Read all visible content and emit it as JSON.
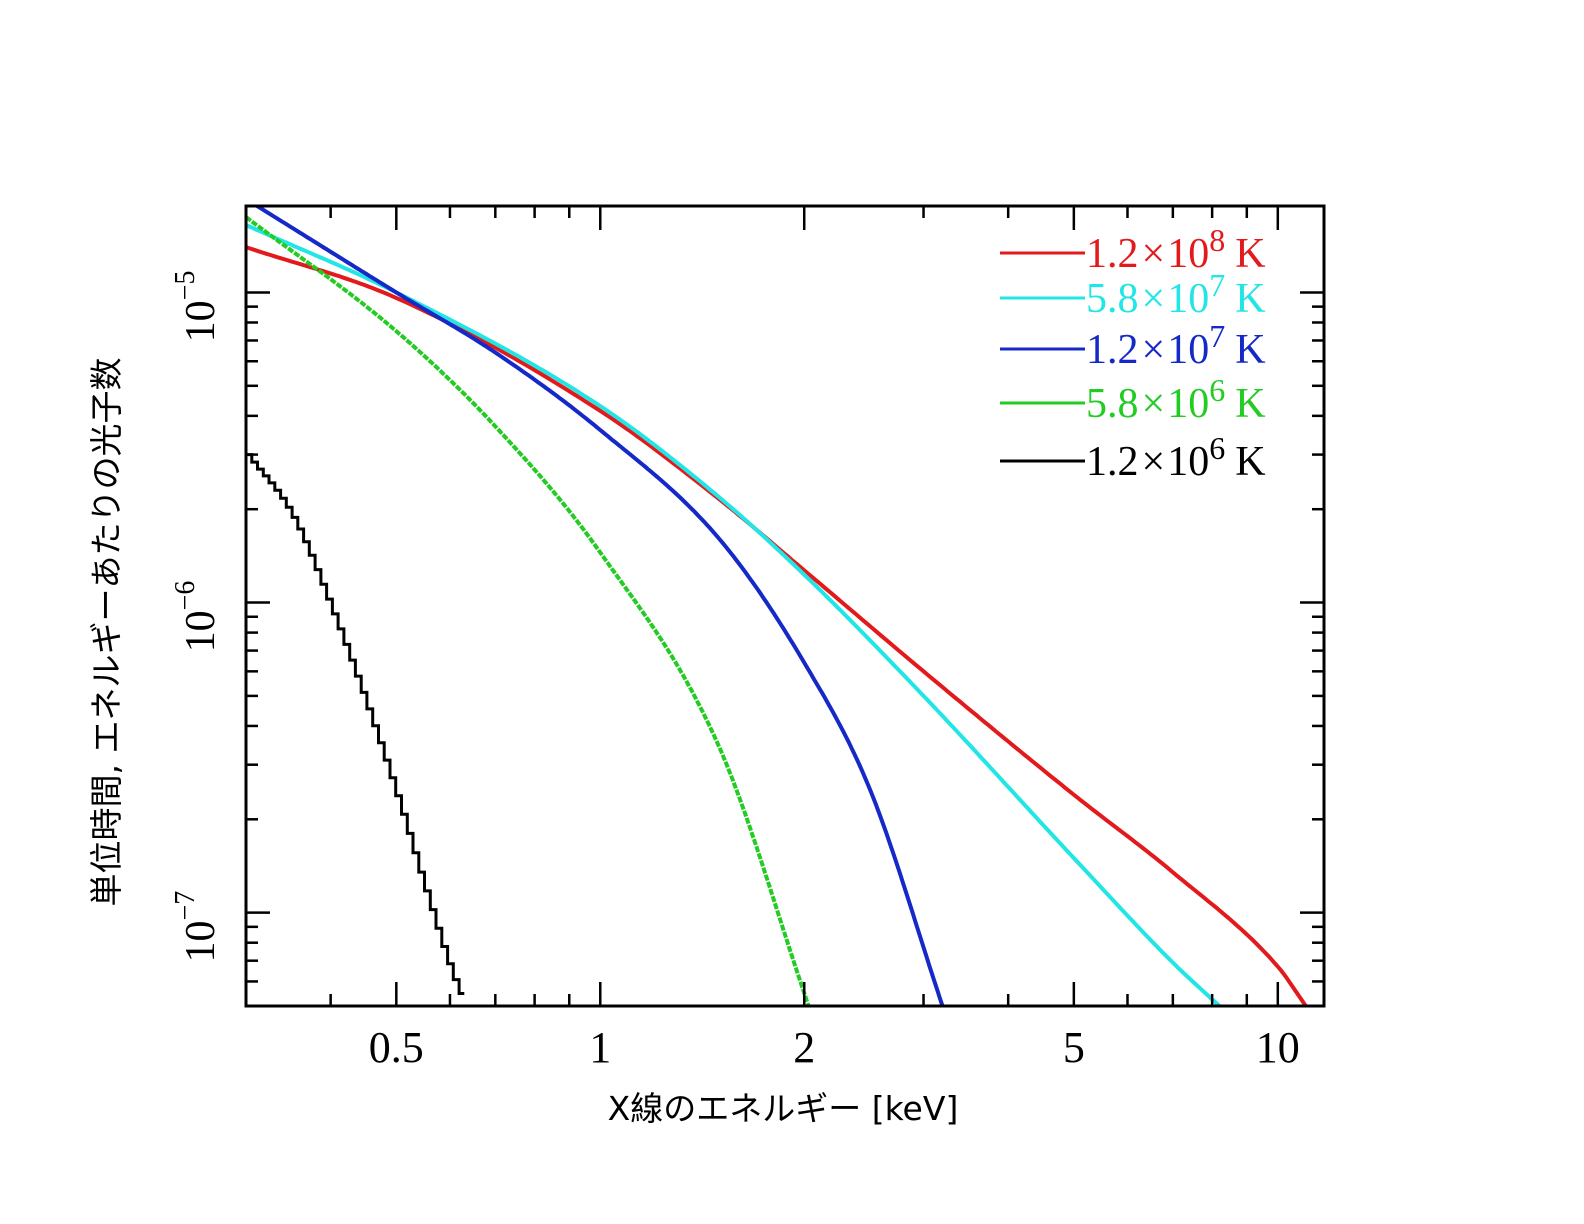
{
  "chart_data": {
    "type": "line",
    "title": "",
    "xlabel": "X線のエネルギー [keV]",
    "ylabel": "単位時間, エネルギーあたりの光子数",
    "xscale": "log",
    "yscale": "log",
    "xlim": [
      0.3,
      11.7
    ],
    "ylim": [
      5e-08,
      1.9e-05
    ],
    "x_ticks": [
      {
        "value": 0.5,
        "label": "0.5"
      },
      {
        "value": 1,
        "label": "1"
      },
      {
        "value": 2,
        "label": "2"
      },
      {
        "value": 5,
        "label": "5"
      },
      {
        "value": 10,
        "label": "10"
      }
    ],
    "y_ticks": [
      {
        "value": 1e-07,
        "base": "10",
        "exp": "−7"
      },
      {
        "value": 1e-06,
        "base": "10",
        "exp": "−6"
      },
      {
        "value": 1e-05,
        "base": "10",
        "exp": "−5"
      }
    ],
    "grid": false,
    "legend_position": "top-right",
    "series": [
      {
        "name": "1.2×10⁸ K",
        "mantissa": "1.2",
        "times": "×",
        "base": "10",
        "exp": "8",
        "unit": "K",
        "color": "#e31a1c",
        "style": "smooth",
        "x": [
          0.3,
          0.5,
          1,
          1.5,
          2,
          3,
          5,
          7,
          10,
          11.0
        ],
        "y": [
          1.4e-05,
          9.6e-06,
          4.15e-06,
          2.15e-06,
          1.27e-06,
          6e-07,
          2.4e-07,
          1.35e-07,
          6.7e-08,
          5e-08
        ]
      },
      {
        "name": "5.8×10⁷ K",
        "mantissa": "5.8",
        "times": "×",
        "base": "10",
        "exp": "7",
        "unit": "K",
        "color": "#22e5e5",
        "style": "smooth",
        "x": [
          0.3,
          0.5,
          1,
          1.5,
          2,
          3,
          5,
          7,
          8.2
        ],
        "y": [
          1.65e-05,
          1e-05,
          4.3e-06,
          2.18e-06,
          1.23e-06,
          5e-07,
          1.5e-07,
          6.9e-08,
          5e-08
        ]
      },
      {
        "name": "1.2×10⁷ K",
        "mantissa": "1.2",
        "times": "×",
        "base": "10",
        "exp": "7",
        "unit": "K",
        "color": "#1528c8",
        "style": "smooth",
        "x": [
          0.3,
          0.5,
          0.7,
          1,
          1.5,
          2,
          2.5,
          3.2
        ],
        "y": [
          2e-05,
          1e-05,
          6.4e-06,
          3.6e-06,
          1.6e-06,
          6.4e-07,
          2.5e-07,
          5e-08
        ]
      },
      {
        "name": "5.8×10⁶ K",
        "mantissa": "5.8",
        "times": "×",
        "base": "10",
        "exp": "6",
        "unit": "K",
        "color": "#22cc22",
        "style": "smooth",
        "x": [
          0.3,
          0.5,
          0.7,
          1,
          1.5,
          2.03
        ],
        "y": [
          1.75e-05,
          7.5e-06,
          3.7e-06,
          1.45e-06,
          3.4e-07,
          5e-08
        ]
      },
      {
        "name": "1.2×10⁶ K",
        "mantissa": "1.2",
        "times": "×",
        "base": "10",
        "exp": "6",
        "unit": "K",
        "color": "#000000",
        "style": "step",
        "x": [
          0.3,
          0.35,
          0.4,
          0.45,
          0.5,
          0.55,
          0.6,
          0.63
        ],
        "y": [
          3e-06,
          1.9e-06,
          9.5e-07,
          4.7e-07,
          2.35e-07,
          1.18e-07,
          6.5e-08,
          5e-08
        ]
      }
    ]
  }
}
